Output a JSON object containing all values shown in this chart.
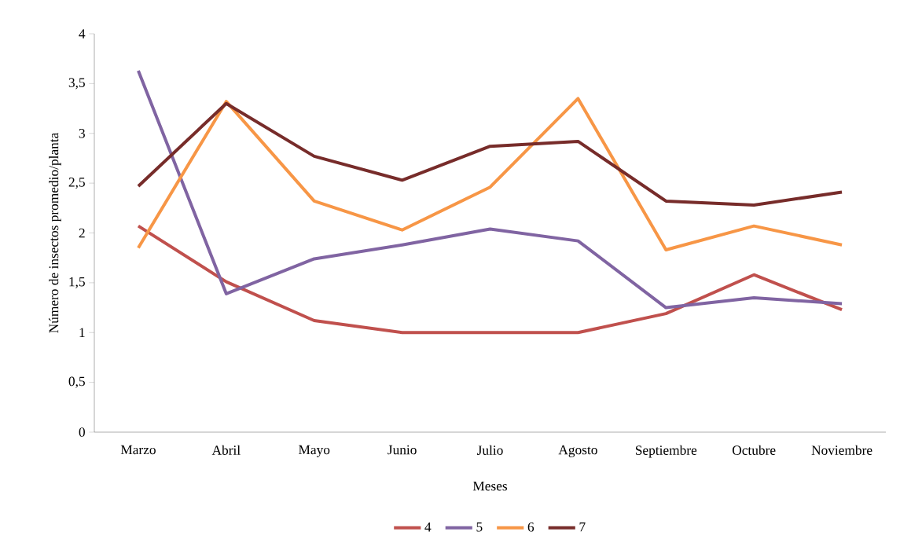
{
  "chart_data": {
    "type": "line",
    "xlabel": "Meses",
    "ylabel": "Número de insectos promedio/planta",
    "categories": [
      "Marzo",
      "Abril",
      "Mayo",
      "Junio",
      "Julio",
      "Agosto",
      "Septiembre",
      "Octubre",
      "Noviembre"
    ],
    "ylim": [
      0,
      4
    ],
    "yticks": [
      0,
      {
        "value": 0.5,
        "label": "0,5"
      },
      1,
      {
        "value": 1.5,
        "label": "1,5"
      },
      2,
      {
        "value": 2.5,
        "label": "2,5"
      },
      3,
      {
        "value": 3.5,
        "label": "3,5"
      },
      4
    ],
    "legend": "bottom",
    "series": [
      {
        "name": "4",
        "color": "#c0504d",
        "values": [
          2.07,
          1.51,
          1.12,
          1.0,
          1.0,
          1.0,
          1.19,
          1.58,
          1.23
        ]
      },
      {
        "name": "5",
        "color": "#8064a2",
        "values": [
          3.63,
          1.39,
          1.74,
          1.88,
          2.04,
          1.92,
          1.25,
          1.35,
          1.29
        ]
      },
      {
        "name": "6",
        "color": "#f79646",
        "values": [
          1.85,
          3.32,
          2.32,
          2.03,
          2.46,
          3.35,
          1.83,
          2.07,
          1.88
        ]
      },
      {
        "name": "7",
        "color": "#772c2a",
        "values": [
          2.47,
          3.3,
          2.77,
          2.53,
          2.87,
          2.92,
          2.32,
          2.28,
          2.41
        ]
      }
    ]
  }
}
